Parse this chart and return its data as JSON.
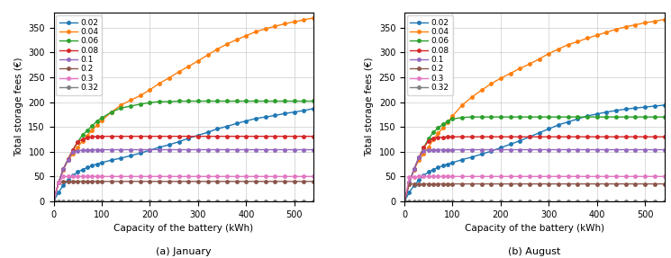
{
  "gamma_labels": [
    "0.02",
    "0.04",
    "0.06",
    "0.08",
    "0.1",
    "0.2",
    "0.3",
    "0.32"
  ],
  "colors": [
    "#1f77b4",
    "#ff7f0e",
    "#2ca02c",
    "#d62728",
    "#9467bd",
    "#8c564b",
    "#e377c2",
    "#7f7f7f"
  ],
  "x": [
    0,
    10,
    20,
    30,
    40,
    50,
    60,
    70,
    80,
    90,
    100,
    120,
    140,
    160,
    180,
    200,
    220,
    240,
    260,
    280,
    300,
    320,
    340,
    360,
    380,
    400,
    420,
    440,
    460,
    480,
    500,
    520,
    540
  ],
  "jan": {
    "0.02": [
      0,
      18,
      32,
      43,
      52,
      59,
      64,
      68,
      72,
      75,
      78,
      83,
      87,
      92,
      97,
      103,
      109,
      114,
      120,
      127,
      133,
      139,
      146,
      151,
      157,
      162,
      167,
      170,
      173,
      177,
      180,
      183,
      187
    ],
    "0.04": [
      0,
      37,
      64,
      83,
      96,
      109,
      122,
      133,
      143,
      154,
      163,
      180,
      194,
      204,
      213,
      225,
      238,
      249,
      261,
      272,
      283,
      295,
      307,
      317,
      326,
      334,
      342,
      348,
      353,
      358,
      362,
      366,
      370
    ],
    "0.06": [
      0,
      37,
      65,
      85,
      103,
      120,
      134,
      143,
      152,
      162,
      168,
      180,
      188,
      192,
      196,
      199,
      201,
      201,
      202,
      202,
      202,
      202,
      202,
      202,
      202,
      202,
      202,
      202,
      202,
      202,
      202,
      202,
      202
    ],
    "0.08": [
      0,
      37,
      65,
      85,
      104,
      120,
      125,
      128,
      130,
      131,
      131,
      131,
      131,
      131,
      131,
      131,
      131,
      131,
      131,
      131,
      131,
      131,
      131,
      131,
      131,
      131,
      131,
      131,
      131,
      131,
      131,
      131,
      131
    ],
    "0.1": [
      0,
      37,
      65,
      84,
      100,
      102,
      103,
      103,
      104,
      104,
      104,
      104,
      104,
      104,
      104,
      104,
      104,
      104,
      104,
      104,
      104,
      104,
      104,
      104,
      104,
      104,
      104,
      104,
      104,
      104,
      104,
      104,
      104
    ],
    "0.2": [
      0,
      37,
      40,
      40,
      40,
      40,
      40,
      40,
      40,
      40,
      40,
      40,
      40,
      40,
      40,
      40,
      40,
      40,
      40,
      40,
      40,
      40,
      40,
      40,
      40,
      40,
      40,
      40,
      40,
      40,
      40,
      40,
      40
    ],
    "0.3": [
      0,
      37,
      50,
      50,
      50,
      50,
      50,
      50,
      50,
      50,
      50,
      50,
      50,
      50,
      50,
      50,
      50,
      50,
      50,
      50,
      50,
      50,
      50,
      50,
      50,
      50,
      50,
      50,
      50,
      50,
      50,
      50,
      50
    ],
    "0.32": [
      0,
      0,
      0,
      0,
      0,
      0,
      0,
      0,
      0,
      0,
      0,
      0,
      0,
      0,
      0,
      0,
      0,
      0,
      0,
      0,
      0,
      0,
      0,
      0,
      0,
      0,
      0,
      0,
      0,
      0,
      0,
      0,
      0
    ]
  },
  "aug": {
    "0.02": [
      0,
      18,
      32,
      43,
      52,
      59,
      64,
      68,
      72,
      75,
      78,
      84,
      89,
      95,
      101,
      108,
      115,
      122,
      130,
      138,
      146,
      154,
      160,
      166,
      172,
      176,
      180,
      183,
      186,
      188,
      190,
      192,
      194
    ],
    "0.04": [
      0,
      37,
      64,
      83,
      96,
      109,
      125,
      137,
      148,
      160,
      172,
      194,
      210,
      224,
      237,
      248,
      258,
      268,
      277,
      287,
      298,
      307,
      316,
      322,
      329,
      335,
      341,
      347,
      352,
      356,
      360,
      363,
      367
    ],
    "0.06": [
      0,
      37,
      65,
      88,
      108,
      126,
      139,
      148,
      155,
      162,
      166,
      169,
      170,
      170,
      170,
      170,
      170,
      170,
      170,
      170,
      170,
      170,
      170,
      170,
      170,
      170,
      170,
      170,
      170,
      170,
      170,
      170,
      170
    ],
    "0.08": [
      0,
      37,
      65,
      88,
      108,
      122,
      127,
      129,
      129,
      130,
      130,
      130,
      130,
      130,
      130,
      130,
      130,
      130,
      130,
      130,
      130,
      130,
      130,
      130,
      130,
      130,
      130,
      130,
      130,
      130,
      130,
      130,
      130
    ],
    "0.1": [
      0,
      37,
      65,
      88,
      102,
      104,
      104,
      104,
      104,
      104,
      104,
      104,
      104,
      104,
      104,
      104,
      104,
      104,
      104,
      104,
      104,
      104,
      104,
      104,
      104,
      104,
      104,
      104,
      104,
      104,
      104,
      104,
      104
    ],
    "0.2": [
      0,
      35,
      35,
      35,
      35,
      35,
      35,
      35,
      35,
      35,
      35,
      35,
      35,
      35,
      35,
      35,
      35,
      35,
      35,
      35,
      35,
      35,
      35,
      35,
      35,
      35,
      35,
      35,
      35,
      35,
      35,
      35,
      35
    ],
    "0.3": [
      0,
      48,
      49,
      50,
      50,
      50,
      50,
      50,
      50,
      50,
      50,
      50,
      50,
      50,
      50,
      50,
      50,
      50,
      50,
      50,
      50,
      50,
      50,
      50,
      50,
      50,
      50,
      50,
      50,
      50,
      50,
      50,
      50
    ],
    "0.32": [
      0,
      0,
      0,
      0,
      0,
      0,
      0,
      0,
      0,
      0,
      0,
      0,
      0,
      0,
      0,
      0,
      0,
      0,
      0,
      0,
      0,
      0,
      0,
      0,
      0,
      0,
      0,
      0,
      0,
      0,
      0,
      0,
      0
    ]
  },
  "xlabel": "Capacity of the battery (kWh)",
  "ylabel": "Total storage fees (€)",
  "title_jan": "(a) January",
  "title_aug": "(b) August",
  "xlim": [
    0,
    540
  ],
  "ylim": [
    0,
    380
  ],
  "yticks": [
    0,
    50,
    100,
    150,
    200,
    250,
    300,
    350
  ],
  "xticks": [
    0,
    100,
    200,
    300,
    400,
    500
  ]
}
